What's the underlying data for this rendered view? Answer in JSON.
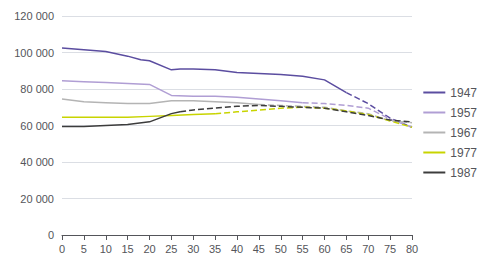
{
  "chart_data": {
    "type": "line",
    "xlim": [
      0,
      80
    ],
    "xticks": [
      0,
      5,
      10,
      15,
      20,
      25,
      30,
      35,
      40,
      45,
      50,
      55,
      60,
      65,
      70,
      75,
      80
    ],
    "ylim": [
      0,
      120000
    ],
    "yticks": [
      0,
      {
        "value": 20000,
        "label": "20 000"
      },
      {
        "value": 40000,
        "label": "40 000"
      },
      {
        "value": 60000,
        "label": "60 000"
      },
      {
        "value": 80000,
        "label": "80 000"
      },
      {
        "value": 100000,
        "label": "100 000"
      },
      {
        "value": 120000,
        "label": "120 000"
      }
    ],
    "grid": true,
    "legend": "right",
    "series": [
      {
        "name": "1947",
        "color": "#5b4da0",
        "line_style": "solid",
        "x": [
          0,
          5,
          10,
          15,
          18,
          20,
          25,
          27,
          30,
          35,
          40,
          45,
          50,
          55,
          60,
          65
        ],
        "values": [
          102500,
          101500,
          100500,
          98000,
          96000,
          95500,
          90500,
          91000,
          91000,
          90500,
          89000,
          88500,
          88000,
          87000,
          85000,
          78000
        ]
      },
      {
        "name": "1947",
        "color": "#5b4da0",
        "line_style": "dashed",
        "x": [
          65,
          70,
          75,
          80
        ],
        "values": [
          78000,
          72000,
          64000,
          59000
        ]
      },
      {
        "name": "1957",
        "color": "#b09ed4",
        "line_style": "solid",
        "x": [
          0,
          5,
          10,
          15,
          20,
          25,
          30,
          35,
          40,
          45,
          50,
          55
        ],
        "values": [
          84500,
          84000,
          83500,
          83000,
          82500,
          76500,
          76000,
          76000,
          75500,
          74500,
          73500,
          72500
        ]
      },
      {
        "name": "1957",
        "color": "#b09ed4",
        "line_style": "dashed",
        "x": [
          55,
          60,
          65,
          70,
          75,
          80
        ],
        "values": [
          72500,
          72000,
          71000,
          69500,
          63500,
          59000
        ]
      },
      {
        "name": "1967",
        "color": "#b4b4b4",
        "line_style": "solid",
        "x": [
          0,
          5,
          10,
          15,
          20,
          25,
          30,
          35,
          40,
          45
        ],
        "values": [
          74500,
          73000,
          72500,
          72000,
          72000,
          73500,
          73500,
          73000,
          72500,
          71500
        ]
      },
      {
        "name": "1967",
        "color": "#b4b4b4",
        "line_style": "dashed",
        "x": [
          45,
          50,
          55,
          60,
          65,
          70,
          75,
          80
        ],
        "values": [
          71500,
          71000,
          70500,
          70000,
          68000,
          66500,
          62500,
          61500
        ]
      },
      {
        "name": "1977",
        "color": "#c8d400",
        "line_style": "solid",
        "x": [
          0,
          5,
          10,
          15,
          20,
          25,
          30,
          35
        ],
        "values": [
          64500,
          64500,
          64500,
          64500,
          65000,
          65500,
          66000,
          66500
        ]
      },
      {
        "name": "1977",
        "color": "#c8d400",
        "line_style": "dashed",
        "x": [
          35,
          40,
          45,
          50,
          55,
          60,
          65,
          70,
          75,
          80
        ],
        "values": [
          66500,
          67500,
          68500,
          69500,
          70000,
          69500,
          68000,
          66000,
          62500,
          59000
        ]
      },
      {
        "name": "1987",
        "color": "#3c3c3c",
        "line_style": "solid",
        "x": [
          0,
          5,
          10,
          15,
          20,
          25,
          27
        ],
        "values": [
          59500,
          59500,
          60000,
          60500,
          62000,
          66500,
          67500
        ]
      },
      {
        "name": "1987",
        "color": "#3c3c3c",
        "line_style": "dashed",
        "x": [
          27,
          30,
          35,
          40,
          45,
          50,
          55,
          60,
          65,
          70,
          75,
          80
        ],
        "values": [
          67500,
          68500,
          69500,
          70500,
          71000,
          70500,
          70000,
          69500,
          67500,
          65500,
          63000,
          62000
        ]
      }
    ]
  }
}
